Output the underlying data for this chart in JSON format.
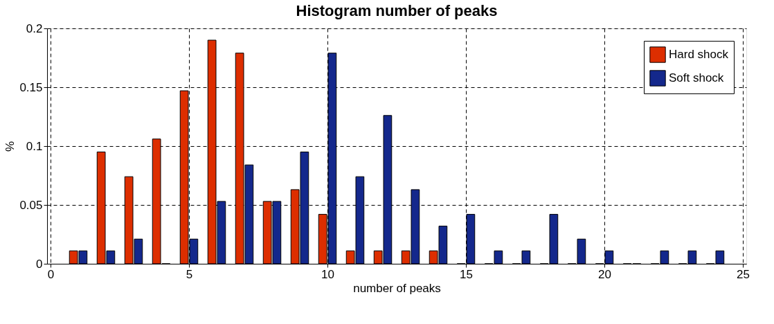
{
  "chart_data": {
    "type": "bar",
    "title": "Histogram number of peaks",
    "xlabel": "number of peaks",
    "ylabel": "%",
    "x": [
      1,
      2,
      3,
      4,
      5,
      6,
      7,
      8,
      9,
      10,
      11,
      12,
      13,
      14,
      15,
      16,
      17,
      18,
      19,
      20,
      21,
      22,
      23,
      24
    ],
    "series": [
      {
        "name": "Hard shock",
        "color": "#dd2e00",
        "values": [
          0.011,
          0.095,
          0.074,
          0.106,
          0.147,
          0.19,
          0.179,
          0.053,
          0.063,
          0.042,
          0.011,
          0.011,
          0.011,
          0.011,
          0,
          0,
          0,
          0,
          0,
          0,
          0,
          0,
          0,
          0
        ]
      },
      {
        "name": "Soft shock",
        "color": "#14288c",
        "values": [
          0.011,
          0.011,
          0.021,
          0,
          0.021,
          0.053,
          0.084,
          0.053,
          0.095,
          0.179,
          0.074,
          0.126,
          0.063,
          0.032,
          0.042,
          0.011,
          0.011,
          0.042,
          0.021,
          0.011,
          0,
          0.011,
          0.011,
          0.011
        ]
      }
    ],
    "xlim": [
      0,
      25
    ],
    "xticks": [
      0,
      5,
      10,
      15,
      20,
      25
    ],
    "ylim": [
      0,
      0.2
    ],
    "yticks": [
      0,
      0.05,
      0.1,
      0.15,
      0.2
    ],
    "grid": true,
    "legend": "top right"
  }
}
